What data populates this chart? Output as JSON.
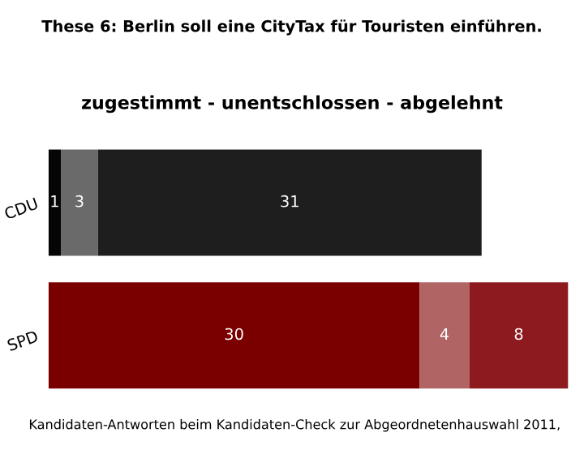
{
  "chart_data": {
    "type": "bar",
    "orientation": "horizontal",
    "stacked": true,
    "data_labels": true,
    "title": "These 6: Berlin soll eine CityTax für Touristen einführen.",
    "subtitle": "zugestimmt - unentschlossen - abgelehnt",
    "annotations": [
      "Kandidaten-Antworten beim Kandidaten-Check zur Abgeordnetenhauswahl 2011,"
    ],
    "categories": [
      "CDU",
      "SPD"
    ],
    "series": [
      {
        "colors": [
          "#050505",
          "#7a0000"
        ],
        "values": [
          1,
          30
        ]
      },
      {
        "colors": [
          "#6a6a6a",
          "#b06464"
        ],
        "values": [
          3,
          4
        ]
      },
      {
        "colors": [
          "#1e1e1e",
          "#8c1a1e"
        ],
        "values": [
          31,
          8
        ]
      }
    ]
  }
}
